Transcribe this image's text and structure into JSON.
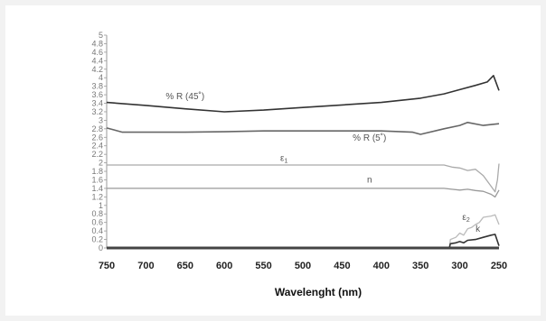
{
  "chart_data": {
    "type": "line",
    "title": "",
    "xlabel": "Wavelenght (nm)",
    "ylabel": "",
    "x_reversed": true,
    "xlim": [
      750,
      250
    ],
    "ylim": [
      0,
      5
    ],
    "x_ticks": [
      "750",
      "700",
      "650",
      "600",
      "550",
      "500",
      "450",
      "400",
      "350",
      "300",
      "250"
    ],
    "y_ticks": [
      "0",
      "0.2",
      "0.4",
      "0.6",
      "0.8",
      "1",
      "1.2",
      "1.4",
      "1.6",
      "1.8",
      "2",
      "2.2",
      "2.4",
      "2.6",
      "2.8",
      "3",
      "3.2",
      "3.4",
      "3.6",
      "3.8",
      "4",
      "4.2",
      "4.4",
      "4.6",
      "4.8",
      "5"
    ],
    "grid": false,
    "legend": "none",
    "series": [
      {
        "name": "% R (45˚)",
        "color": "#333333",
        "x": [
          750,
          700,
          650,
          600,
          550,
          500,
          450,
          400,
          350,
          320,
          300,
          280,
          265,
          257,
          250
        ],
        "y": [
          3.42,
          3.35,
          3.27,
          3.2,
          3.24,
          3.3,
          3.36,
          3.42,
          3.52,
          3.62,
          3.72,
          3.82,
          3.9,
          4.05,
          3.7
        ]
      },
      {
        "name": "% R (5˚)",
        "color": "#666666",
        "x": [
          750,
          730,
          700,
          650,
          600,
          550,
          500,
          450,
          400,
          360,
          350,
          320,
          300,
          290,
          270,
          250
        ],
        "y": [
          2.82,
          2.72,
          2.72,
          2.72,
          2.73,
          2.75,
          2.75,
          2.75,
          2.75,
          2.72,
          2.67,
          2.8,
          2.88,
          2.95,
          2.88,
          2.92
        ]
      },
      {
        "name": "ε₁",
        "color": "#aaaaaa",
        "x": [
          750,
          700,
          600,
          500,
          400,
          320,
          310,
          300,
          290,
          280,
          270,
          260,
          255,
          252,
          250
        ],
        "y": [
          1.95,
          1.95,
          1.95,
          1.95,
          1.95,
          1.95,
          1.9,
          1.88,
          1.82,
          1.85,
          1.7,
          1.45,
          1.32,
          1.6,
          1.98
        ]
      },
      {
        "name": "n",
        "color": "#999999",
        "x": [
          750,
          600,
          450,
          320,
          310,
          300,
          290,
          280,
          270,
          260,
          255,
          250
        ],
        "y": [
          1.4,
          1.4,
          1.4,
          1.4,
          1.38,
          1.36,
          1.38,
          1.35,
          1.33,
          1.26,
          1.2,
          1.36
        ]
      },
      {
        "name": "ε₂",
        "color": "#bbbbbb",
        "x": [
          313,
          312,
          305,
          300,
          295,
          290,
          285,
          280,
          275,
          270,
          260,
          255,
          250
        ],
        "y": [
          0.02,
          0.2,
          0.25,
          0.35,
          0.3,
          0.45,
          0.48,
          0.55,
          0.6,
          0.72,
          0.75,
          0.78,
          0.55
        ]
      },
      {
        "name": "k",
        "color": "#333333",
        "x": [
          313,
          312,
          305,
          300,
          295,
          290,
          280,
          270,
          260,
          255,
          250
        ],
        "y": [
          0.02,
          0.1,
          0.12,
          0.15,
          0.12,
          0.18,
          0.2,
          0.25,
          0.3,
          0.32,
          0.05
        ]
      }
    ],
    "annotations": [
      {
        "text": "% R (45˚)",
        "x": 650,
        "y": 3.5,
        "color": "#555555"
      },
      {
        "text": "% R (5˚)",
        "x": 415,
        "y": 2.52,
        "color": "#555555"
      },
      {
        "text": "ε",
        "sub": "1",
        "x": 524,
        "y": 2.04,
        "color": "#999999"
      },
      {
        "text": "n",
        "x": 415,
        "y": 1.54,
        "color": "#999999"
      },
      {
        "text": "ε",
        "sub": "2",
        "x": 292,
        "y": 0.66,
        "color": "#aaaaaa"
      },
      {
        "text": "k",
        "x": 277,
        "y": 0.38,
        "color": "#333333"
      }
    ],
    "baseline_color": "#444444"
  }
}
